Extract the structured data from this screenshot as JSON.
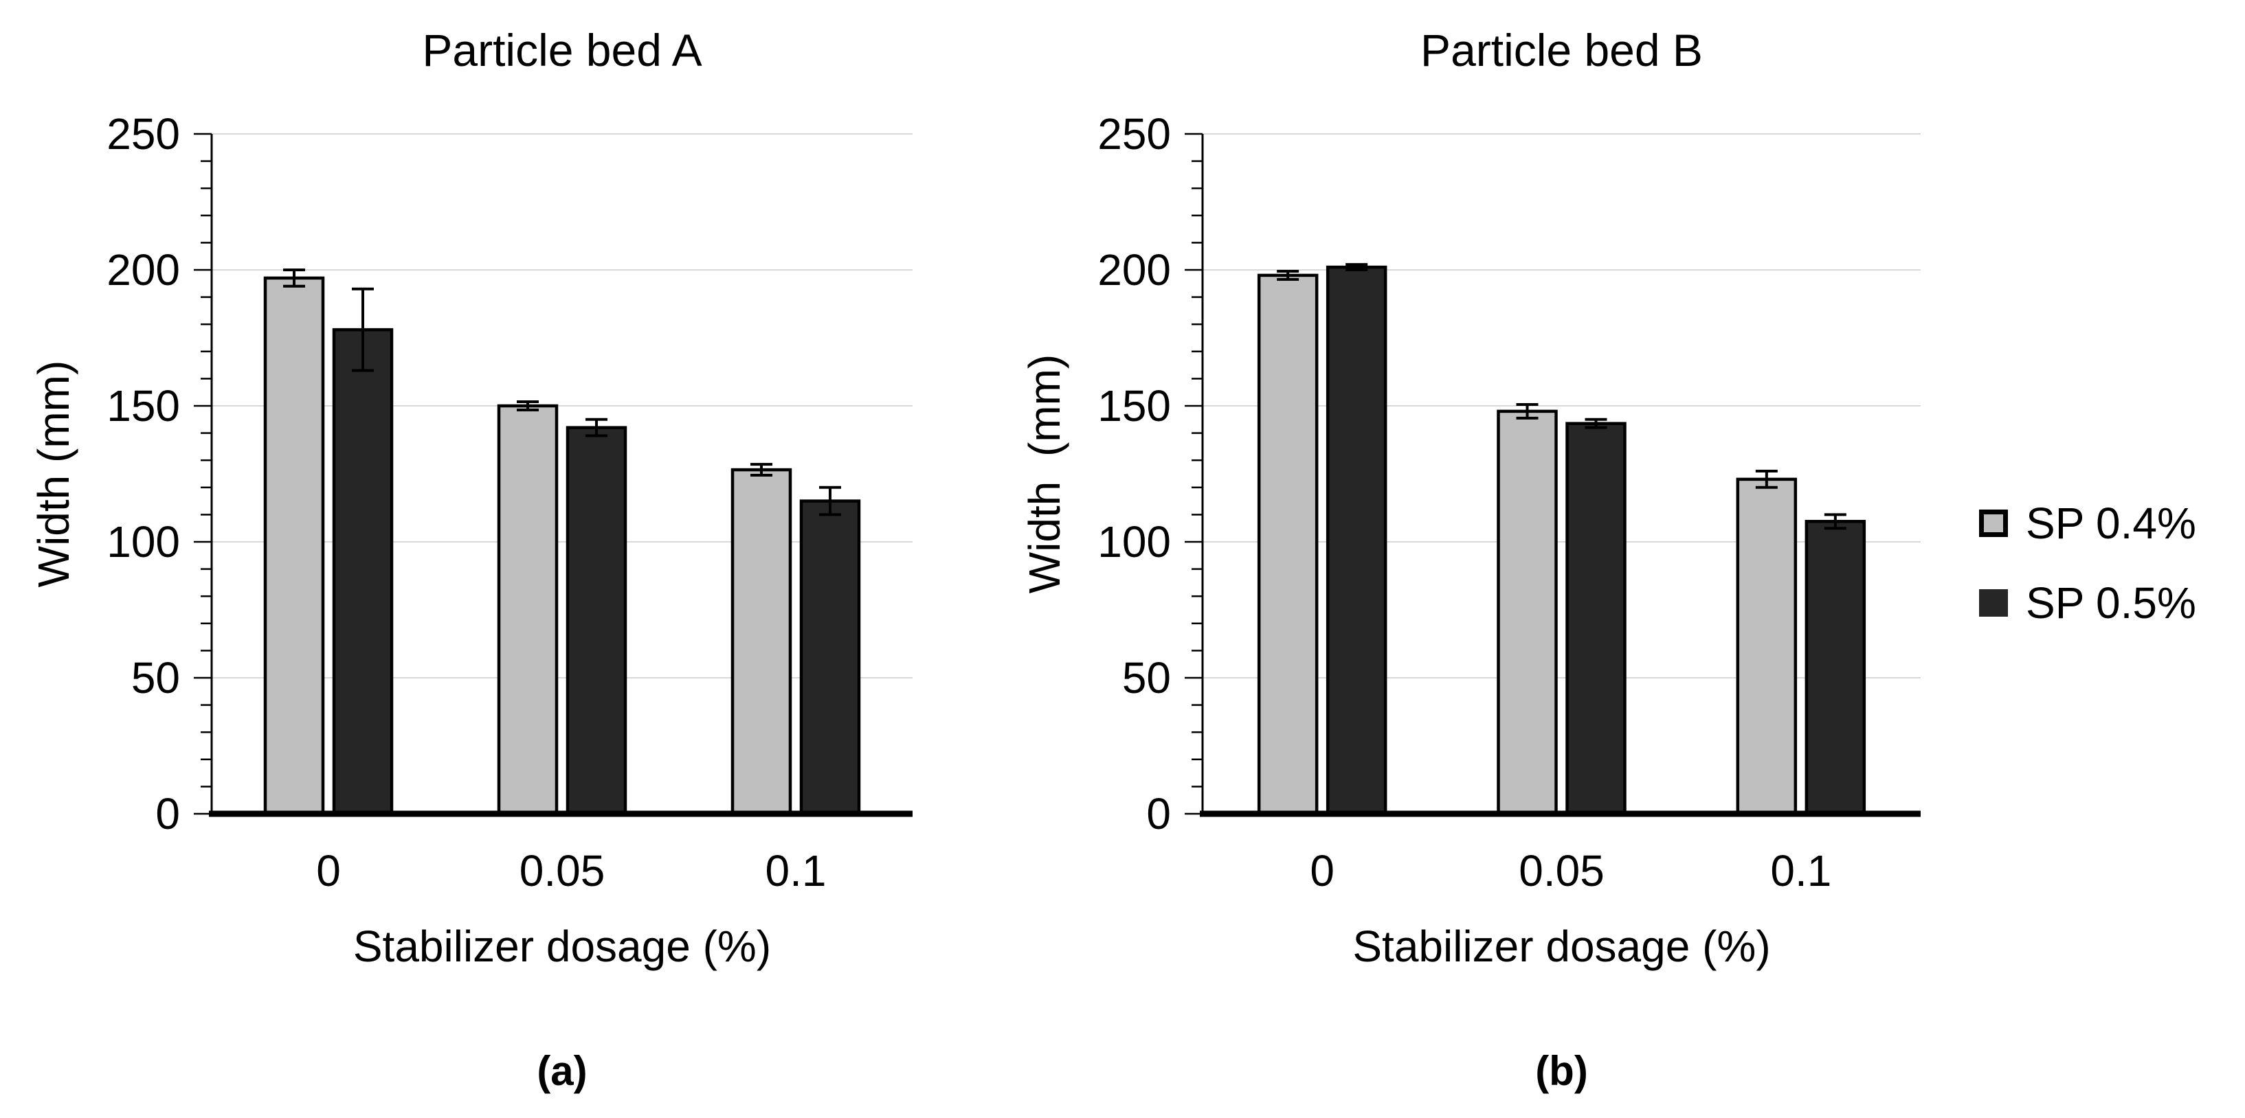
{
  "figure": {
    "background": "#ffffff",
    "colors": {
      "sp04_fill": "#bfbfbf",
      "sp05_fill": "#262626",
      "bar_border": "#000000",
      "gridline": "#d9d9d9",
      "axis": "#000000",
      "text": "#000000"
    },
    "legend": {
      "position": "right",
      "items": [
        {
          "label": "SP 0.4%",
          "swatch_color": "#bfbfbf"
        },
        {
          "label": "SP 0.5%",
          "swatch_color": "#262626"
        }
      ]
    }
  },
  "chart_data": [
    {
      "type": "bar",
      "title": "Particle bed A",
      "caption": "(a)",
      "xlabel": "Stabilizer dosage (%)",
      "ylabel": "Width (mm)",
      "categories": [
        "0",
        "0.05",
        "0.1"
      ],
      "ylim": [
        0,
        250
      ],
      "yticks": [
        0,
        50,
        100,
        150,
        200,
        250
      ],
      "ytick_step": 50,
      "minor_tick_step": 10,
      "grid": true,
      "series": [
        {
          "name": "SP 0.4%",
          "fill": "#bfbfbf",
          "values": [
            197,
            150,
            126.5
          ],
          "errors": [
            3,
            1.5,
            2
          ]
        },
        {
          "name": "SP 0.5%",
          "fill": "#262626",
          "values": [
            178,
            142,
            115
          ],
          "errors": [
            15,
            3,
            5
          ]
        }
      ]
    },
    {
      "type": "bar",
      "title": "Particle bed B",
      "caption": "(b)",
      "xlabel": "Stabilizer dosage (%)",
      "ylabel": "Width  (mm)",
      "categories": [
        "0",
        "0.05",
        "0.1"
      ],
      "ylim": [
        0,
        250
      ],
      "yticks": [
        0,
        50,
        100,
        150,
        200,
        250
      ],
      "ytick_step": 50,
      "minor_tick_step": 10,
      "grid": true,
      "series": [
        {
          "name": "SP 0.4%",
          "fill": "#bfbfbf",
          "values": [
            198,
            148,
            123
          ],
          "errors": [
            1.5,
            2.5,
            3
          ]
        },
        {
          "name": "SP 0.5%",
          "fill": "#262626",
          "values": [
            201,
            143.5,
            107.5
          ],
          "errors": [
            1,
            1.5,
            2.5
          ]
        }
      ]
    }
  ]
}
